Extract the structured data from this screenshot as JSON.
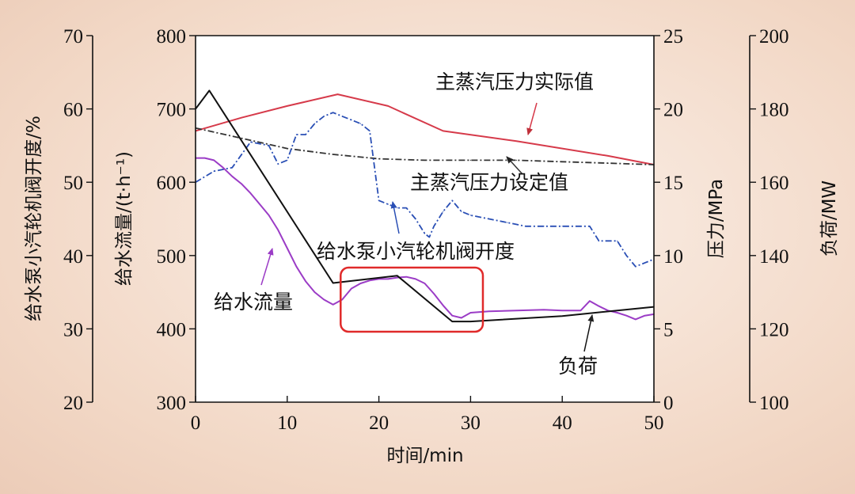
{
  "chart_data": {
    "type": "line",
    "xlabel": "时间/min",
    "xlim": [
      0,
      50
    ],
    "xticks": [
      0,
      10,
      20,
      30,
      40,
      50
    ],
    "axes": {
      "valve": {
        "label": "给水泵小汽轮机阀开度/%",
        "lim": [
          20,
          70
        ],
        "ticks": [
          20,
          30,
          40,
          50,
          60,
          70
        ]
      },
      "flow": {
        "label": "给水流量/(t·h⁻¹)",
        "lim": [
          300,
          800
        ],
        "ticks": [
          300,
          400,
          500,
          600,
          700,
          800
        ]
      },
      "pressure": {
        "label": "压力/MPa",
        "lim": [
          0,
          25
        ],
        "ticks": [
          0,
          5,
          10,
          15,
          20,
          25
        ]
      },
      "load": {
        "label": "负荷/MW",
        "lim": [
          100,
          200
        ],
        "ticks": [
          100,
          120,
          140,
          160,
          180,
          200
        ]
      }
    },
    "series": [
      {
        "name": "主蒸汽压力实际值",
        "axis": "pressure",
        "color": "#d63a4a",
        "style": "solid",
        "x": [
          0,
          5,
          10,
          15.5,
          21,
          27,
          35,
          45,
          50
        ],
        "y": [
          18.5,
          19.4,
          20.2,
          21.0,
          20.2,
          18.5,
          17.8,
          16.8,
          16.2
        ]
      },
      {
        "name": "主蒸汽压力设定值",
        "axis": "pressure",
        "color": "#333333",
        "style": "dashdot",
        "x": [
          0,
          5,
          10,
          15,
          20,
          25,
          30,
          35,
          40,
          45,
          50
        ],
        "y": [
          18.7,
          18.0,
          17.3,
          16.9,
          16.6,
          16.5,
          16.5,
          16.5,
          16.4,
          16.3,
          16.2
        ]
      },
      {
        "name": "给水泵小汽轮机阀开度",
        "axis": "valve",
        "color": "#2a4fb5",
        "style": "dashdot",
        "x": [
          0,
          2,
          4,
          6,
          8,
          9,
          10,
          11,
          12,
          13,
          14,
          15,
          16,
          17,
          18,
          19,
          20,
          21,
          22,
          23,
          24,
          25,
          25.5,
          26,
          27,
          28,
          29,
          30,
          32,
          34,
          36,
          38,
          40,
          42,
          43,
          44,
          46,
          47,
          48,
          49,
          50
        ],
        "y": [
          50.0,
          51.5,
          52.0,
          55.5,
          55.0,
          52.5,
          53.0,
          56.5,
          56.5,
          58.0,
          59.0,
          59.5,
          59.0,
          58.5,
          58.0,
          57.0,
          47.5,
          47.0,
          46.5,
          46.5,
          45.0,
          43.0,
          42.5,
          44.0,
          46.0,
          47.5,
          46.0,
          45.5,
          45.0,
          44.5,
          44.0,
          44.0,
          44.0,
          44.0,
          44.0,
          42.0,
          42.0,
          40.0,
          38.5,
          39.0,
          39.5
        ]
      },
      {
        "name": "给水流量",
        "axis": "flow",
        "color": "#9b3cc6",
        "style": "solid",
        "x": [
          0,
          1,
          2,
          3,
          4,
          5,
          6,
          7,
          8,
          9,
          10,
          11,
          12,
          13,
          14,
          15,
          16,
          17,
          18,
          19,
          20,
          21,
          22,
          23,
          24,
          25,
          26,
          27,
          28,
          29,
          30,
          32,
          35,
          38,
          40,
          42,
          43,
          44,
          45,
          46,
          47,
          48,
          49,
          50
        ],
        "y": [
          633,
          633,
          630,
          620,
          608,
          598,
          585,
          570,
          555,
          535,
          510,
          485,
          465,
          450,
          440,
          433,
          440,
          455,
          462,
          466,
          468,
          468,
          470,
          471,
          468,
          462,
          448,
          432,
          418,
          415,
          422,
          424,
          425,
          426,
          425,
          425,
          438,
          431,
          425,
          422,
          418,
          413,
          418,
          420
        ]
      },
      {
        "name": "负荷",
        "axis": "load",
        "color": "#111111",
        "style": "solid",
        "x": [
          0,
          1.5,
          15,
          22,
          28,
          30,
          40,
          50
        ],
        "y": [
          180,
          185,
          132.5,
          134.5,
          122,
          122,
          123.5,
          126
        ]
      }
    ],
    "annotations": [
      {
        "text": "主蒸汽压力实际值",
        "target": "主蒸汽压力实际值"
      },
      {
        "text": "主蒸汽压力设定值",
        "target": "主蒸汽压力设定值"
      },
      {
        "text": "给水泵小汽轮机阀开度",
        "target": "给水泵小汽轮机阀开度"
      },
      {
        "text": "给水流量",
        "target": "给水流量"
      },
      {
        "text": "负荷",
        "target": "负荷"
      }
    ],
    "highlight": {
      "color": "#e02a2a",
      "x_range": [
        16,
        31
      ]
    }
  }
}
